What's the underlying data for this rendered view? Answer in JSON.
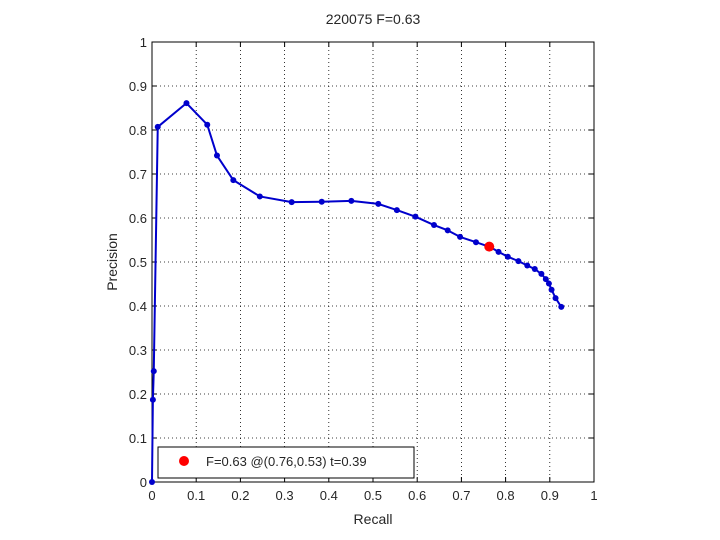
{
  "chart_data": {
    "type": "line",
    "title": "220075 F=0.63",
    "xlabel": "Recall",
    "ylabel": "Precision",
    "xlim": [
      0,
      1
    ],
    "ylim": [
      0,
      1
    ],
    "xticks": [
      0,
      0.1,
      0.2,
      0.3,
      0.4,
      0.5,
      0.6,
      0.7,
      0.8,
      0.9,
      1
    ],
    "yticks": [
      0,
      0.1,
      0.2,
      0.3,
      0.4,
      0.5,
      0.6,
      0.7,
      0.8,
      0.9,
      1
    ],
    "xtick_labels": [
      "0",
      "0.1",
      "0.2",
      "0.3",
      "0.4",
      "0.5",
      "0.6",
      "0.7",
      "0.8",
      "0.9",
      "1"
    ],
    "ytick_labels": [
      "0",
      "0.1",
      "0.2",
      "0.3",
      "0.4",
      "0.5",
      "0.6",
      "0.7",
      "0.8",
      "0.9",
      "1"
    ],
    "grid": true,
    "legend_position": "bottom-left",
    "legend_label": "F=0.63 @(0.76,0.53) t=0.39",
    "series": [
      {
        "color": "#0000cc",
        "x": [
          0.0,
          0.002,
          0.004,
          0.013,
          0.078,
          0.125,
          0.147,
          0.184,
          0.244,
          0.316,
          0.384,
          0.451,
          0.512,
          0.554,
          0.596,
          0.638,
          0.669,
          0.697,
          0.733,
          0.765,
          0.784,
          0.805,
          0.829,
          0.849,
          0.866,
          0.881,
          0.891,
          0.898,
          0.904,
          0.913,
          0.926
        ],
        "y": [
          0.0,
          0.187,
          0.252,
          0.807,
          0.861,
          0.812,
          0.742,
          0.686,
          0.649,
          0.636,
          0.637,
          0.639,
          0.632,
          0.618,
          0.603,
          0.584,
          0.572,
          0.557,
          0.545,
          0.534,
          0.523,
          0.512,
          0.502,
          0.492,
          0.484,
          0.473,
          0.461,
          0.451,
          0.437,
          0.418,
          0.398
        ]
      }
    ],
    "highlight": {
      "x": 0.763,
      "y": 0.535,
      "color": "#ff0000"
    }
  }
}
